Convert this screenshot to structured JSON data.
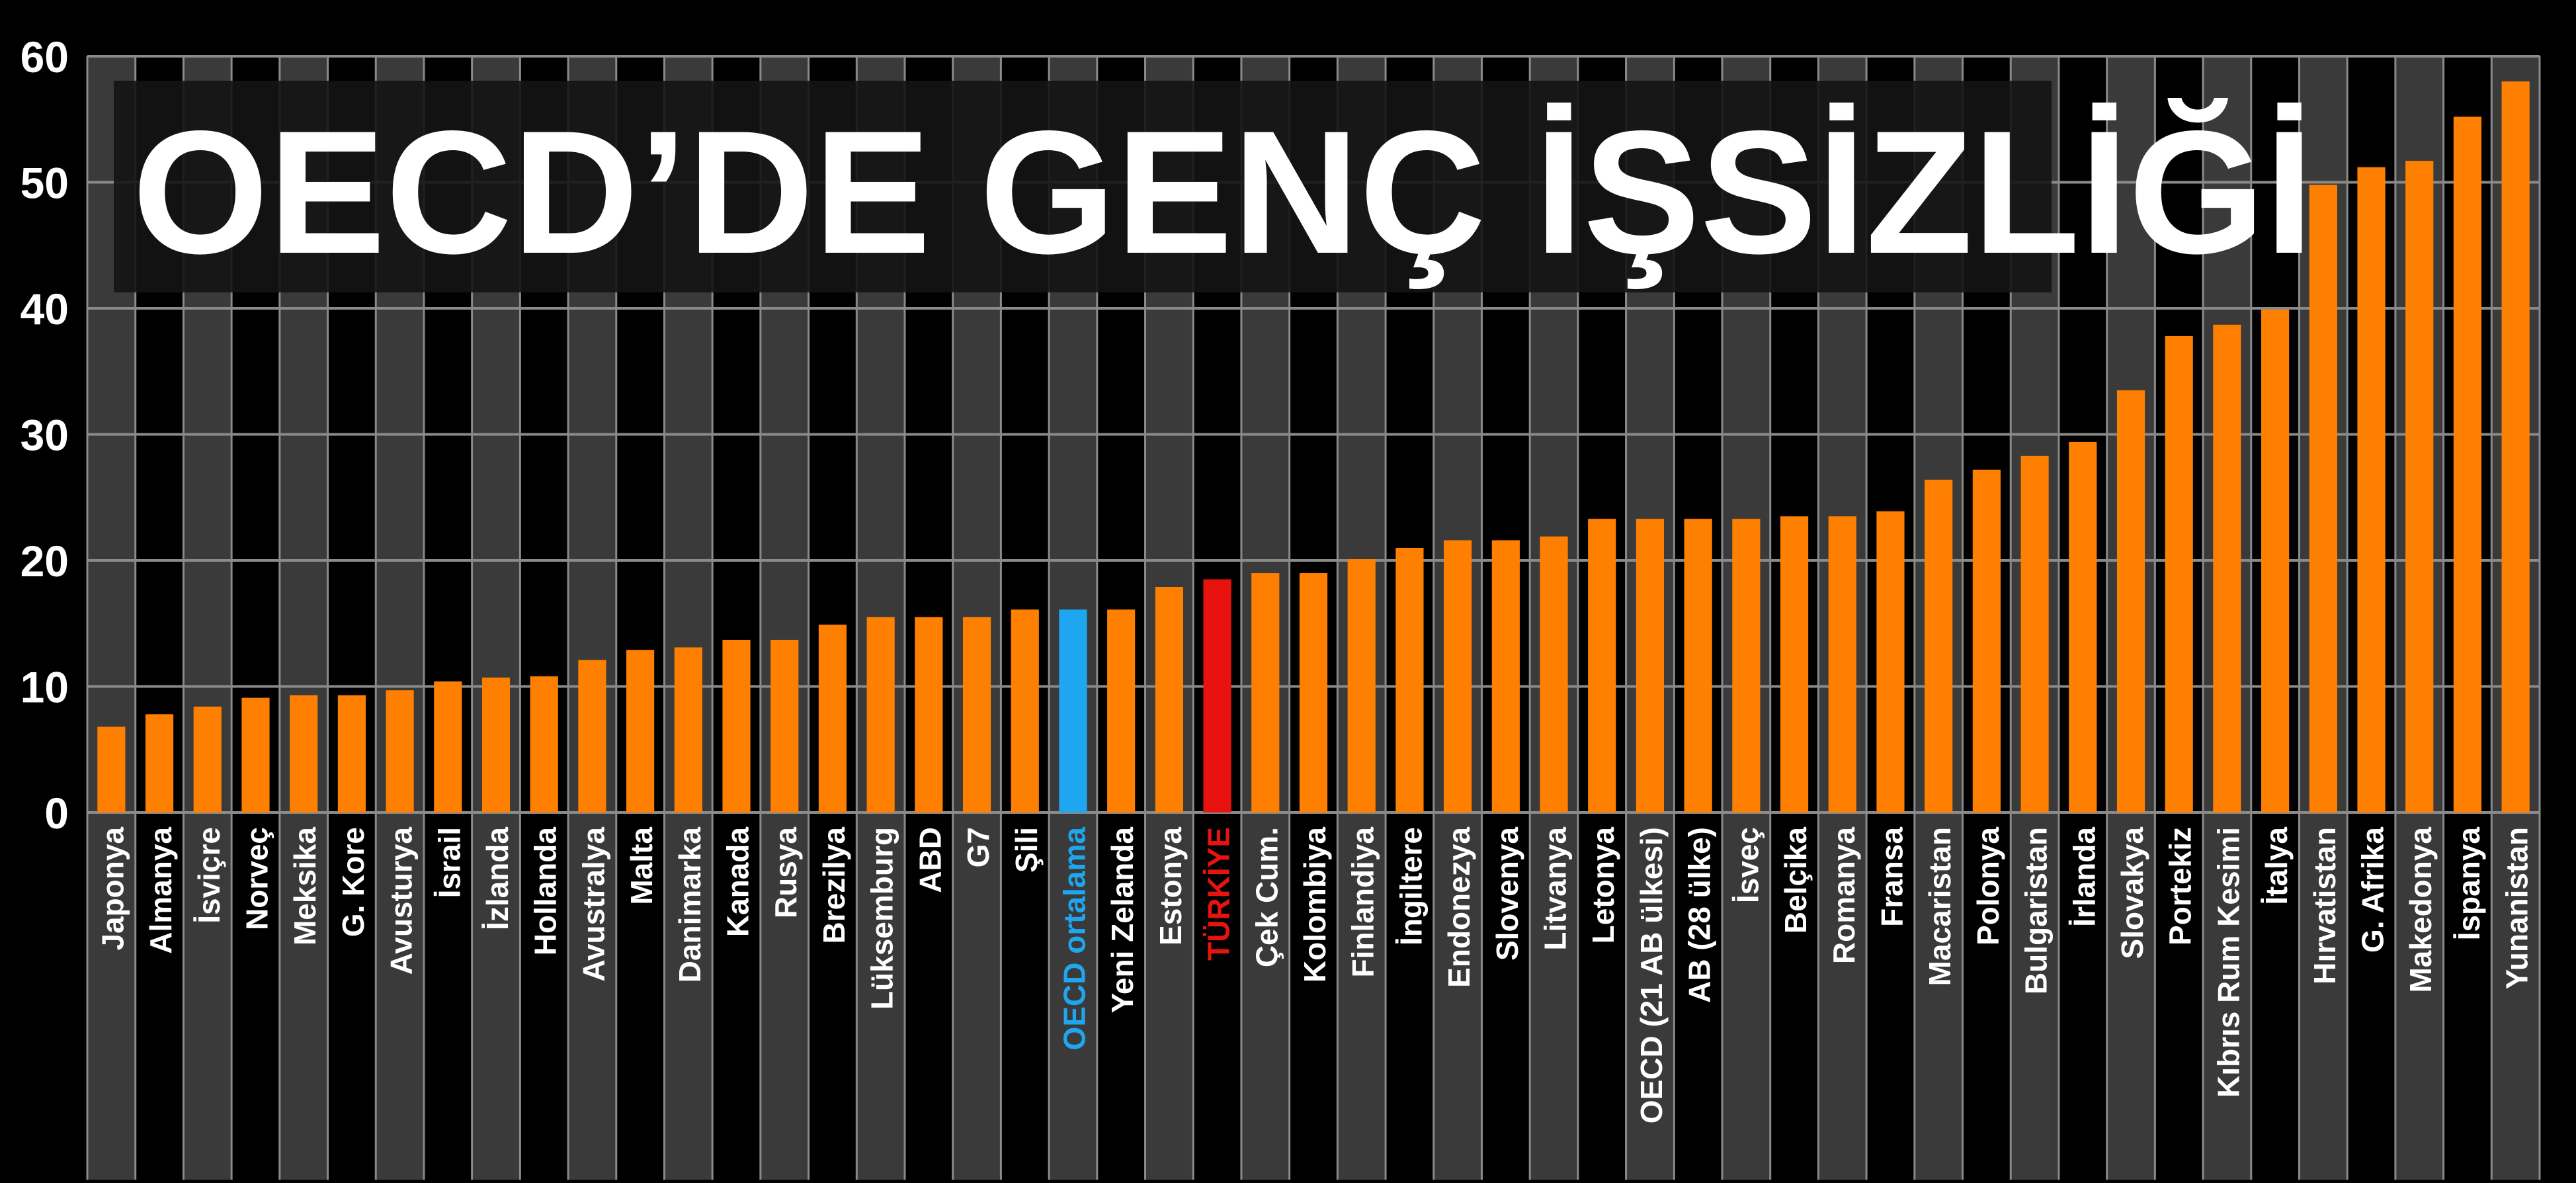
{
  "colors": {
    "background": "#000000",
    "column_band": "#3a3a3a",
    "grid": "#8a8a8a",
    "bar": "#ff8000",
    "oecd_average": "#1ea7f0",
    "turkey": "#e8130f",
    "text": "#ffffff"
  },
  "chart_data": {
    "type": "bar",
    "title": "OECD’DE GENÇ İŞSİZLİĞİ",
    "xlabel": "",
    "ylabel": "",
    "ylim": [
      0,
      60
    ],
    "yticks": [
      0,
      10,
      20,
      30,
      40,
      50,
      60
    ],
    "grid": true,
    "categories": [
      "Japonya",
      "Almanya",
      "İsviçre",
      "Norveç",
      "Meksika",
      "G. Kore",
      "Avusturya",
      "İsrail",
      "İzlanda",
      "Hollanda",
      "Avustralya",
      "Malta",
      "Danimarka",
      "Kanada",
      "Rusya",
      "Brezilya",
      "Lüksemburg",
      "ABD",
      "G7",
      "Şili",
      "OECD ortalama",
      "Yeni Zelanda",
      "Estonya",
      "TÜRKİYE",
      "Çek Cum.",
      "Kolombiya",
      "Finlandiya",
      "İngiltere",
      "Endonezya",
      "Slovenya",
      "Litvanya",
      "Letonya",
      "OECD (21 AB ülkesi)",
      "AB (28 ülke)",
      "İsveç",
      "Belçika",
      "Romanya",
      "Fransa",
      "Macaristan",
      "Polonya",
      "Bulgaristan",
      "İrlanda",
      "Slovakya",
      "Portekiz",
      "Kıbrıs Rum Kesimi",
      "İtalya",
      "Hırvatistan",
      "G. Afrika",
      "Makedonya",
      "İspanya",
      "Yunanistan"
    ],
    "values": [
      6.8,
      7.8,
      8.4,
      9.1,
      9.3,
      9.3,
      9.7,
      10.4,
      10.7,
      10.8,
      12.1,
      12.9,
      13.1,
      13.7,
      13.7,
      14.9,
      15.5,
      15.5,
      15.5,
      16.1,
      16.1,
      16.1,
      17.9,
      18.5,
      19.0,
      19.0,
      20.1,
      21.0,
      21.6,
      21.6,
      21.9,
      23.3,
      23.3,
      23.3,
      23.3,
      23.5,
      23.5,
      23.9,
      26.4,
      27.2,
      28.3,
      29.4,
      33.5,
      37.8,
      38.7,
      39.9,
      49.8,
      51.2,
      51.7,
      55.2,
      58.0
    ],
    "highlights": {
      "OECD ortalama": "oecd_average",
      "TÜRKİYE": "turkey"
    }
  }
}
